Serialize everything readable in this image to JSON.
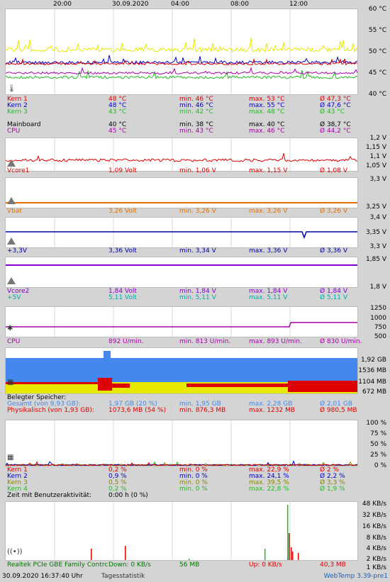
{
  "time_axis": [
    "20:00",
    "30.09.2020",
    "04:00",
    "08:00",
    "12:00"
  ],
  "temp": {
    "yticks": [
      "60 °C",
      "55 °C",
      "50 °C",
      "45 °C",
      "40 °C"
    ],
    "rows": [
      {
        "name": "Kern 1",
        "cur": "48 °C",
        "min": "min. 46 °C",
        "max": "max. 53 °C",
        "avg": "Ø 47,3 °C",
        "color": "#dd0000"
      },
      {
        "name": "Kern 2",
        "cur": "48 °C",
        "min": "min. 46 °C",
        "max": "max. 55 °C",
        "avg": "Ø 47,6 °C",
        "color": "#0000cc"
      },
      {
        "name": "Kern 3",
        "cur": "43 °C",
        "min": "min. 42 °C",
        "max": "max. 48 °C",
        "avg": "Ø 43 °C",
        "color": "#22bb22"
      },
      {
        "name": "",
        "cur": "",
        "min": "",
        "max": "",
        "avg": "",
        "color": "#e8e800"
      },
      {
        "name": "Mainboard",
        "cur": "40 °C",
        "min": "min. 38 °C",
        "max": "max. 40 °C",
        "avg": "Ø 38,7 °C",
        "color": "#000000"
      },
      {
        "name": "CPU",
        "cur": "45 °C",
        "min": "min. 43 °C",
        "max": "max. 46 °C",
        "avg": "Ø 44,2 °C",
        "color": "#aa00aa"
      }
    ]
  },
  "vcore": {
    "yticks": [
      "1,2 V",
      "1,15 V",
      "1,1 V",
      "1,05 V"
    ],
    "row": {
      "name": "Vcore1",
      "cur": "1,09 Volt",
      "min": "min. 1,06 V",
      "max": "max. 1,15 V",
      "avg": "Ø 1,08 V",
      "color": "#dd0000"
    }
  },
  "vbat": {
    "yticks": [
      "3,3 V",
      "3,25 V"
    ],
    "row": {
      "name": "Vbat",
      "cur": "3,26 Volt",
      "min": "min. 3,26 V",
      "max": "max. 3,26 V",
      "avg": "Ø 3,26 V",
      "color": "#e07000"
    }
  },
  "v33": {
    "yticks": [
      "3,4 V",
      "3,35 V",
      "3,3 V"
    ],
    "row": {
      "name": "+3,3V",
      "cur": "3,36 Volt",
      "min": "min. 3,34 V",
      "max": "max. 3,36 V",
      "avg": "Ø 3,36 V",
      "color": "#0000aa"
    }
  },
  "vcore2": {
    "yticks": [
      "1,85 V",
      "1,8 V"
    ],
    "rows": [
      {
        "name": "Vcore2",
        "cur": "1,84 Volt",
        "min": "min. 1,84 V",
        "max": "max. 1,84 V",
        "avg": "Ø 1,84 V",
        "color": "#8800cc"
      },
      {
        "name": "+5V",
        "cur": "5,11 Volt",
        "min": "min. 5,11 V",
        "max": "max. 5,11 V",
        "avg": "Ø 5,11 V",
        "color": "#00aaaa"
      }
    ]
  },
  "fan": {
    "yticks": [
      "1250",
      "1000",
      "750",
      "500"
    ],
    "row": {
      "name": "CPU",
      "cur": "892 U/min.",
      "min": "min. 813 U/min.",
      "max": "max. 893 U/min.",
      "avg": "Ø 830 U/min.",
      "color": "#aa00aa"
    }
  },
  "memory": {
    "yticks": [
      "1,92 GB",
      "1536 MB",
      "1104 MB",
      "672 MB"
    ],
    "header": "Belegter Speicher:",
    "rows": [
      {
        "name": "Gesamt (von 9,93 GB):",
        "cur": "1,97 GB (20 %)",
        "min": "min. 1,95 GB",
        "max": "max. 2,28 GB",
        "avg": "Ø 2,01 GB",
        "color": "#4488ee"
      },
      {
        "name": "Physikalisch (von 1,93 GB):",
        "cur": "1073,6 MB (54 %)",
        "min": "min. 876,3 MB",
        "max": "max. 1232 MB",
        "avg": "Ø 980,5 MB",
        "color": "#dd0000"
      },
      {
        "name": "",
        "cur": "",
        "min": "",
        "max": "",
        "avg": "",
        "color": "#e8e800"
      }
    ]
  },
  "cpu_load": {
    "yticks": [
      "100 %",
      "75 %",
      "50 %",
      "25 %",
      "0 %"
    ],
    "rows": [
      {
        "name": "Kern 1",
        "cur": "0,2 %",
        "min": "min. 0 %",
        "max": "max. 22,9 %",
        "avg": "Ø 2 %",
        "color": "#dd0000"
      },
      {
        "name": "Kern 2",
        "cur": "0,9 %",
        "min": "min. 0 %",
        "max": "max. 24,1 %",
        "avg": "Ø 2,2 %",
        "color": "#0000cc"
      },
      {
        "name": "Kern 3",
        "cur": "0,5 %",
        "min": "min. 0 %",
        "max": "max. 39,5 %",
        "avg": "Ø 3,3 %",
        "color": "#888800"
      },
      {
        "name": "Kern 4",
        "cur": "0,2 %",
        "min": "min. 0 %",
        "max": "max. 22,8 %",
        "avg": "Ø 1,9 %",
        "color": "#22bb22"
      }
    ],
    "activity_label": "Zeit mit Benutzeraktivität:",
    "activity_value": "0:00 h (0 %)"
  },
  "network": {
    "yticks": [
      "48 KB/s",
      "32 KB/s",
      "16 KB/s",
      "8 KB/s",
      "4 KB/s",
      "2 KB/s",
      "1 KB/s"
    ],
    "adapter": "Realtek PCIe GBE Family Contrc",
    "down": "Down: 0 KB/s",
    "down_total": "56 MB",
    "up": "Up: 0 KB/s",
    "up_total": "40,3 MB"
  },
  "footer": {
    "datetime": "30.09.2020 16:37:40 Uhr",
    "link": "Tagesstatistik",
    "version": "WebTemp 3.39-pre1"
  }
}
